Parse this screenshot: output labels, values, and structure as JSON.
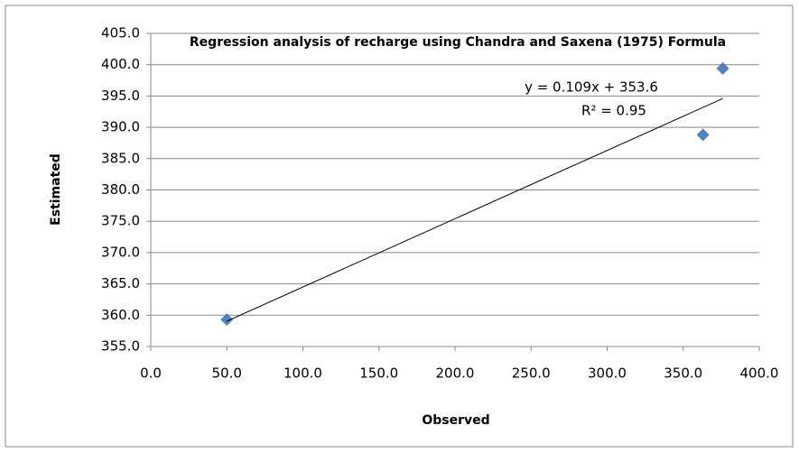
{
  "chart_data": {
    "type": "scatter",
    "title": "Regression analysis of recharge using Chandra and Saxena (1975) Formula",
    "x_label": "Observed",
    "y_label": "Estimated",
    "annotations": [
      "y = 0.109x + 353.6",
      "R² = 0.95"
    ],
    "series": [
      {
        "color": "#4f81bd",
        "x": [
          50,
          363,
          376
        ],
        "values": [
          359.3,
          388.8,
          399.4
        ]
      },
      {
        "type": "line",
        "color": "#000000",
        "x": [
          50,
          376
        ],
        "values": [
          359.05,
          394.6
        ]
      }
    ],
    "xlim": [
      0,
      400
    ],
    "ylim": [
      355,
      405
    ],
    "xticks": [
      {
        "value": 0,
        "label": "0.0"
      },
      {
        "value": 50,
        "label": "50.0"
      },
      {
        "value": 100,
        "label": "100.0"
      },
      {
        "value": 150,
        "label": "150.0"
      },
      {
        "value": 200,
        "label": "200.0"
      },
      {
        "value": 250,
        "label": "250.0"
      },
      {
        "value": 300,
        "label": "300.0"
      },
      {
        "value": 350,
        "label": "350.0"
      },
      {
        "value": 400,
        "label": "400.0"
      }
    ],
    "yticks": [
      {
        "value": 355,
        "label": "355.0"
      },
      {
        "value": 360,
        "label": "360.0"
      },
      {
        "value": 365,
        "label": "365.0"
      },
      {
        "value": 370,
        "label": "370.0"
      },
      {
        "value": 375,
        "label": "375.0"
      },
      {
        "value": 380,
        "label": "380.0"
      },
      {
        "value": 385,
        "label": "385.0"
      },
      {
        "value": 390,
        "label": "390.0"
      },
      {
        "value": 395,
        "label": "395.0"
      },
      {
        "value": 400,
        "label": "400.0"
      },
      {
        "value": 405,
        "label": "405.0"
      }
    ],
    "grid": true
  }
}
